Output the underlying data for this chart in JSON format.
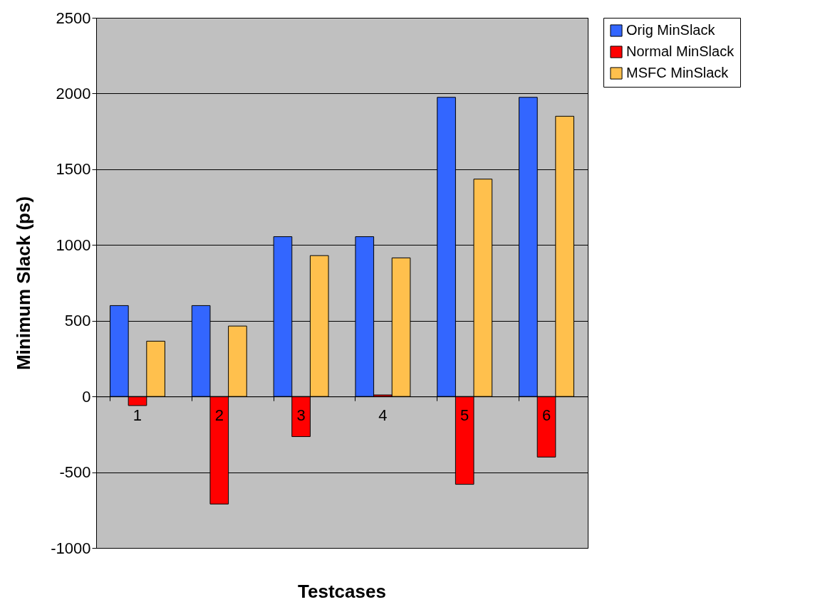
{
  "chart_data": {
    "type": "bar",
    "xlabel": "Testcases",
    "ylabel": "Minimum Slack (ps)",
    "categories": [
      "1",
      "2",
      "3",
      "4",
      "5",
      "6"
    ],
    "series": [
      {
        "name": "Orig MinSlack",
        "color": "#3366ff",
        "values": [
          600,
          600,
          1055,
          1055,
          1975,
          1975
        ]
      },
      {
        "name": "Normal MinSlack",
        "color": "#ff0000",
        "values": [
          -60,
          -710,
          -265,
          10,
          -580,
          -400
        ]
      },
      {
        "name": "MSFC MinSlack",
        "color": "#ffc04d",
        "values": [
          365,
          465,
          930,
          915,
          1435,
          1850
        ]
      }
    ],
    "ylim": [
      -1000,
      2500
    ],
    "yticks": [
      -1000,
      -500,
      0,
      500,
      1000,
      1500,
      2000,
      2500
    ],
    "grid": "y",
    "legend": "right"
  }
}
